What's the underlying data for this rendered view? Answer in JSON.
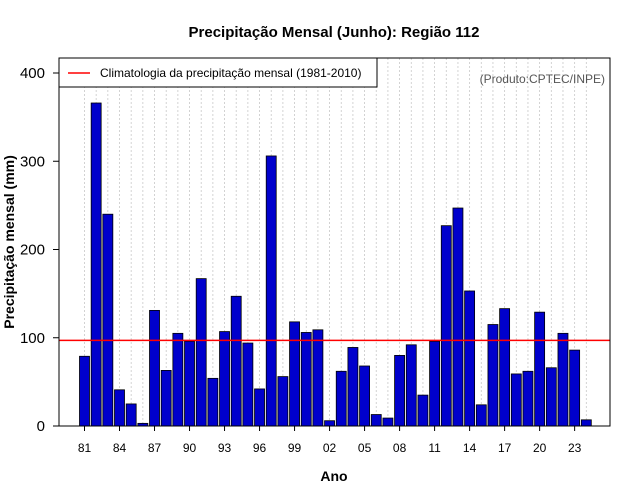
{
  "chart_data": {
    "type": "bar",
    "title": "Precipitação Mensal (Junho): Região 112",
    "xlabel": "Ano",
    "ylabel": "Precipitação mensal (mm)",
    "source": "(Produto:CPTEC/INPE)",
    "ylim": [
      0,
      410
    ],
    "yticks": [
      0,
      100,
      200,
      300,
      400
    ],
    "years": [
      1981,
      1982,
      1983,
      1984,
      1985,
      1986,
      1987,
      1988,
      1989,
      1990,
      1991,
      1992,
      1993,
      1994,
      1995,
      1996,
      1997,
      1998,
      1999,
      2000,
      2001,
      2002,
      2003,
      2004,
      2005,
      2006,
      2007,
      2008,
      2009,
      2010,
      2011,
      2012,
      2013,
      2014,
      2015,
      2016,
      2017,
      2018,
      2019,
      2020,
      2021,
      2022,
      2023,
      2024
    ],
    "xtick_labels": [
      "81",
      "84",
      "87",
      "90",
      "93",
      "96",
      "99",
      "02",
      "05",
      "08",
      "11",
      "14",
      "17",
      "20",
      "23"
    ],
    "values": [
      79,
      366,
      240,
      41,
      25,
      3,
      131,
      63,
      105,
      96,
      167,
      54,
      107,
      147,
      94,
      42,
      306,
      56,
      118,
      106,
      109,
      6,
      62,
      89,
      68,
      13,
      9,
      80,
      92,
      35,
      96,
      227,
      247,
      153,
      24,
      115,
      133,
      59,
      62,
      129,
      66,
      105,
      86,
      7
    ],
    "climatology": 97,
    "legend": "Climatologia da precipitação mensal (1981-2010)",
    "colors": {
      "bar": "#0000cc",
      "climatology": "#ff0000",
      "grid": "#c8c8c8"
    }
  }
}
